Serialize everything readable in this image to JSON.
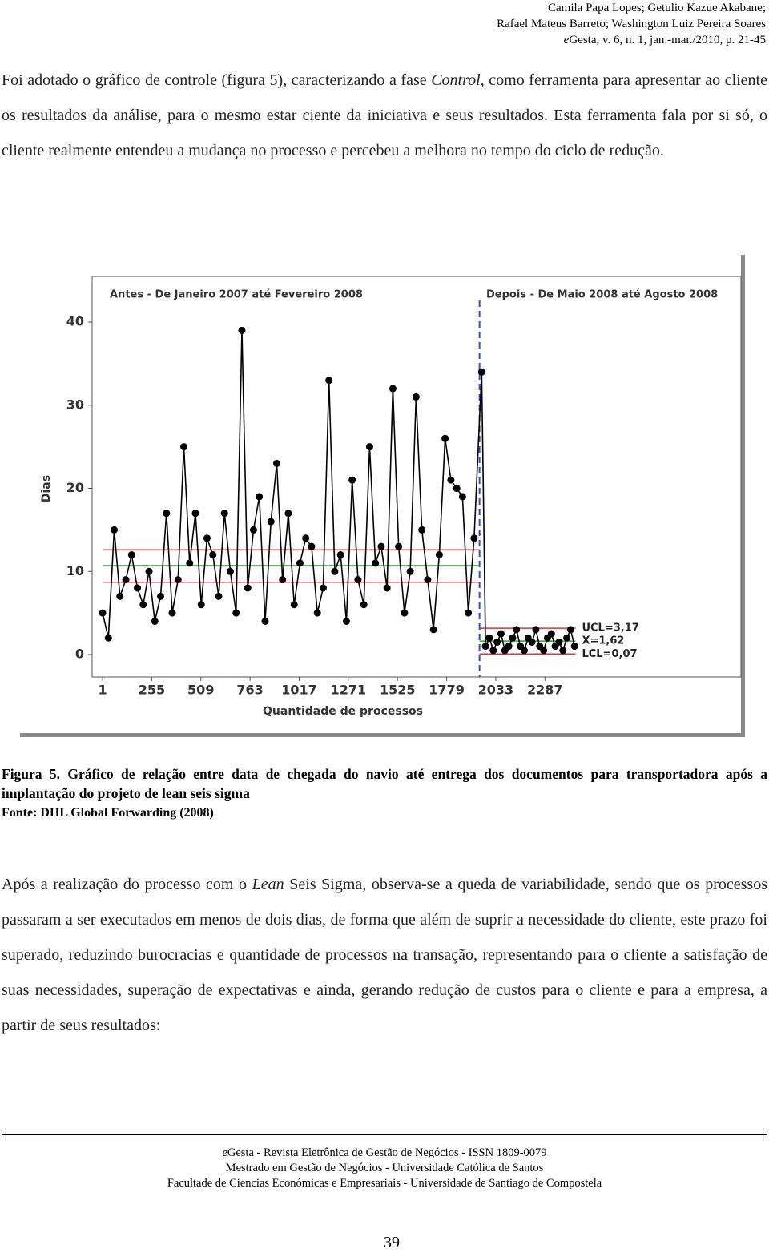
{
  "header": {
    "lines": [
      "Camila Papa Lopes; Getulio Kazue Akabane;",
      "Rafael Mateus Barreto; Washington Luiz Pereira Soares",
      [
        "e",
        "Gesta, v. 6, n. 1, jan.-mar./2010, p. 21-45"
      ]
    ]
  },
  "paragraphs": [
    [
      "Foi adotado o gráfico de controle (figura 5), caracterizando a fase ",
      "Control",
      ", como ferramenta para apresentar ao cliente os resultados da análise, para o mesmo estar ciente da iniciativa e seus resultados. Esta ferramenta fala por si só, o cliente realmente entendeu a mudança no processo e percebeu a melhora no tempo do ciclo de redução."
    ],
    [
      "Após a realização do processo com o ",
      "Lean",
      " Seis Sigma, observa-se a queda de variabilidade, sendo que os processos passaram a ser executados em menos de dois dias, de forma que além de suprir a necessidade do cliente, este prazo foi superado, reduzindo burocracias e quantidade de processos na transação, representando para o cliente a satisfação de suas necessidades, superação de expectativas e ainda, gerando redução de custos para o cliente e para a empresa, a partir de seus resultados:"
    ]
  ],
  "figure": {
    "caption": "Figura 5. Gráfico de relação entre data de chegada do navio até entrega dos documentos para transportadora após a implantação do projeto de lean seis sigma",
    "source": "Fonte: DHL Global Forwarding (2008)"
  },
  "chart_data": {
    "type": "line",
    "subtitles": [
      "Antes - De Janeiro 2007 até Fevereiro 2008",
      "Depois - De Maio 2008 até Agosto 2008"
    ],
    "x_label": "Quantidade de processos",
    "y_label": "Dias",
    "x": [
      1,
      31,
      61,
      91,
      121,
      151,
      181,
      211,
      241,
      271,
      301,
      331,
      361,
      391,
      421,
      451,
      481,
      511,
      541,
      571,
      601,
      631,
      661,
      691,
      721,
      751,
      781,
      811,
      841,
      871,
      901,
      931,
      961,
      991,
      1021,
      1051,
      1081,
      1111,
      1141,
      1171,
      1201,
      1231,
      1261,
      1291,
      1321,
      1351,
      1381,
      1411,
      1441,
      1471,
      1501,
      1531,
      1561,
      1591,
      1621,
      1651,
      1681,
      1711,
      1741,
      1771,
      1801,
      1831,
      1861,
      1891,
      1921,
      1960,
      1980,
      2000,
      2020,
      2040,
      2060,
      2080,
      2100,
      2120,
      2140,
      2160,
      2180,
      2200,
      2220,
      2240,
      2260,
      2280,
      2300,
      2320,
      2340,
      2360,
      2380,
      2400,
      2420,
      2440
    ],
    "series": [
      {
        "color": "#000000",
        "values": [
          5,
          2,
          15,
          7,
          9,
          12,
          8,
          6,
          10,
          4,
          7,
          17,
          5,
          9,
          25,
          11,
          17,
          6,
          14,
          12,
          7,
          17,
          10,
          5,
          39,
          8,
          15,
          19,
          4,
          16,
          23,
          9,
          17,
          6,
          11,
          14,
          13,
          5,
          8,
          33,
          10,
          12,
          4,
          21,
          9,
          6,
          25,
          11,
          13,
          8,
          32,
          13,
          5,
          10,
          31,
          15,
          9,
          3,
          12,
          26,
          21,
          20,
          19,
          5,
          14,
          34,
          1,
          2,
          0.5,
          1.5,
          2.5,
          0.5,
          1,
          2,
          3,
          1,
          0.5,
          2,
          1.5,
          3,
          1,
          0.5,
          2,
          2.5,
          1,
          1.5,
          0.5,
          2,
          3,
          1
        ]
      }
    ],
    "control_lines": [
      {
        "value": 12.6,
        "x": [
          1,
          1949
        ],
        "color": "#c04040"
      },
      {
        "value": 10.7,
        "x": [
          1,
          1949
        ],
        "color": "#30a030"
      },
      {
        "value": 8.7,
        "x": [
          1,
          1949
        ],
        "color": "#c04040"
      },
      {
        "label": "UCL=3,17",
        "value": 3.17,
        "x": [
          1949,
          2445
        ],
        "color": "#c04040"
      },
      {
        "label": "X=1,62",
        "value": 1.62,
        "x": [
          1949,
          2445
        ],
        "color": "#30a030"
      },
      {
        "label": "LCL=0,07",
        "value": 0.07,
        "x": [
          1949,
          2445
        ],
        "color": "#c04040"
      }
    ],
    "phase_divider": 1949,
    "divider_color": "#3050c0",
    "xlim": [
      -53,
      3300
    ],
    "ylim": [
      -2.7,
      45.5
    ],
    "xticks": [
      1,
      255,
      509,
      763,
      1017,
      1271,
      1525,
      1779,
      2033,
      2287
    ],
    "yticks": [
      0,
      10,
      20,
      30,
      40
    ]
  },
  "footer": {
    "lines": [
      [
        "e",
        "Gesta - Revista Eletrônica de Gestão de Negócios - ISSN 1809-0079"
      ],
      "Mestrado em Gestão de Negócios - Universidade Católica de Santos",
      "Facultade de Ciencias Económicas e Empresariais - Universidade de Santiago de Compostela"
    ],
    "page_number": "39"
  }
}
